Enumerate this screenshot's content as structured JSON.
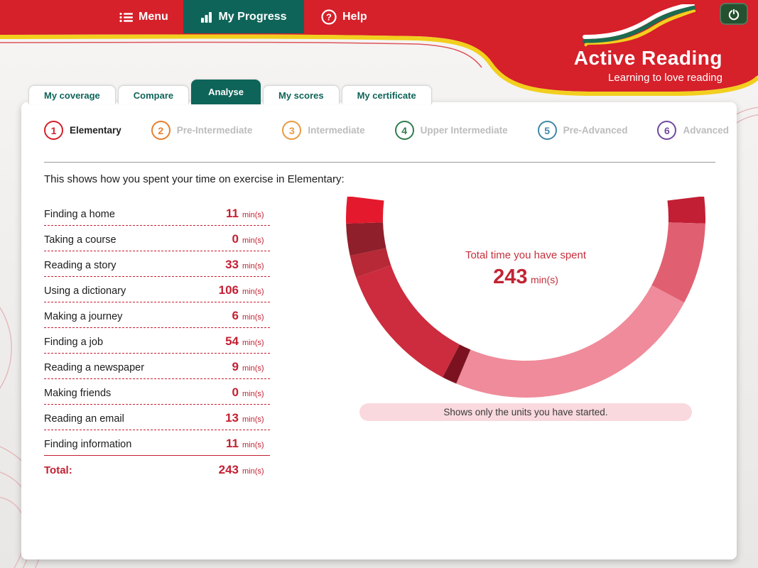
{
  "colors": {
    "header_red": "#d6202a",
    "band_yellow": "#f2cf1e",
    "teal": "#0f6459",
    "accent_red": "#c32032",
    "banner_bg": "#f9d9de"
  },
  "header": {
    "menu_label": "Menu",
    "progress_label": "My Progress",
    "help_label": "Help",
    "brand": {
      "title": "Active Reading",
      "tagline": "Learning to love reading"
    }
  },
  "tabs": [
    {
      "label": "My coverage",
      "active": false
    },
    {
      "label": "Compare",
      "active": false
    },
    {
      "label": "Analyse",
      "active": true
    },
    {
      "label": "My scores",
      "active": false
    },
    {
      "label": "My certificate",
      "active": false
    }
  ],
  "levels": [
    {
      "num": "1",
      "label": "Elementary",
      "color": "#d4202c",
      "active": true
    },
    {
      "num": "2",
      "label": "Pre-Intermediate",
      "color": "#e87e2e",
      "active": false
    },
    {
      "num": "3",
      "label": "Intermediate",
      "color": "#e89a40",
      "active": false
    },
    {
      "num": "4",
      "label": "Upper Intermediate",
      "color": "#2f7d4e",
      "active": false
    },
    {
      "num": "5",
      "label": "Pre-Advanced",
      "color": "#4187a6",
      "active": false
    },
    {
      "num": "6",
      "label": "Advanced",
      "color": "#6f4a9e",
      "active": false
    }
  ],
  "intro_text": "This shows how you spent your time on exercise in Elementary:",
  "table": {
    "unit": "min(s)",
    "rows": [
      {
        "label": "Finding a home",
        "value": "11"
      },
      {
        "label": "Taking a course",
        "value": "0"
      },
      {
        "label": "Reading a story",
        "value": "33"
      },
      {
        "label": "Using a dictionary",
        "value": "106"
      },
      {
        "label": "Making a journey",
        "value": "6"
      },
      {
        "label": "Finding a job",
        "value": "54"
      },
      {
        "label": "Reading a newspaper",
        "value": "9"
      },
      {
        "label": "Making friends",
        "value": "0"
      },
      {
        "label": "Reading an email",
        "value": "13"
      },
      {
        "label": "Finding information",
        "value": "11"
      }
    ],
    "total_label": "Total:",
    "total_value": "243"
  },
  "chart_data": {
    "type": "pie",
    "shape": "half-donut",
    "start_angle": -7,
    "arc_degrees": 194,
    "total_minutes": 243,
    "center_label": "Total time you have spent",
    "center_value": "243",
    "unit": "min(s)",
    "note": "Shows only the units you have started.",
    "segments": [
      {
        "label": "Finding a home",
        "minutes": 11,
        "color": "#c21f34"
      },
      {
        "label": "Reading a story",
        "minutes": 33,
        "color": "#e06072"
      },
      {
        "label": "Using a dictionary",
        "minutes": 106,
        "color": "#ef8b9a"
      },
      {
        "label": "Making a journey",
        "minutes": 6,
        "color": "#7c1220"
      },
      {
        "label": "Finding a job",
        "minutes": 54,
        "color": "#cc2c3e"
      },
      {
        "label": "Reading a newspaper",
        "minutes": 9,
        "color": "#b72936"
      },
      {
        "label": "Reading an email",
        "minutes": 13,
        "color": "#8e1f2b"
      },
      {
        "label": "Finding information",
        "minutes": 11,
        "color": "#e5192d"
      }
    ]
  }
}
